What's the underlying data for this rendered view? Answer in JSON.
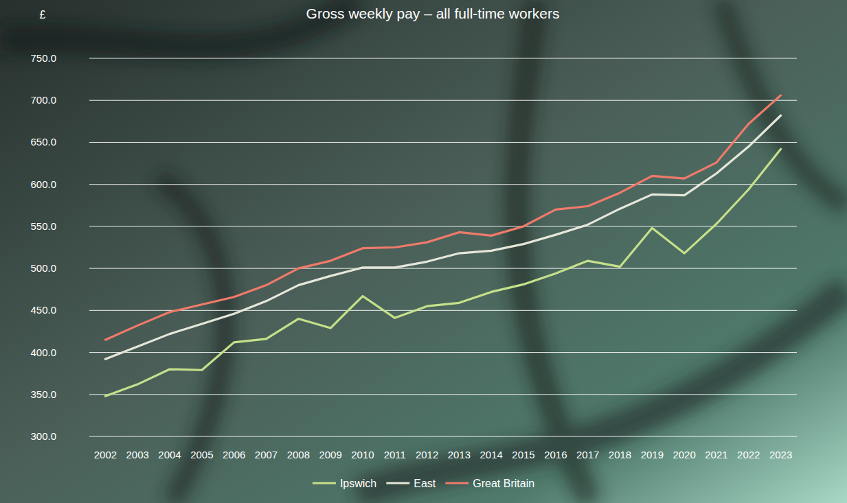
{
  "chart_data": {
    "type": "line",
    "title": "Gross weekly pay – all full-time workers",
    "y_label": "£",
    "categories": [
      "2002",
      "2003",
      "2004",
      "2005",
      "2006",
      "2007",
      "2008",
      "2009",
      "2010",
      "2011",
      "2012",
      "2013",
      "2014",
      "2015",
      "2016",
      "2017",
      "2018",
      "2019",
      "2020",
      "2021",
      "2022",
      "2023"
    ],
    "series": [
      {
        "name": "Ipswich",
        "color": "#c5e08a",
        "values": [
          348,
          362,
          380,
          379,
          412,
          416,
          440,
          429,
          467,
          441,
          455,
          459,
          472,
          481,
          494,
          509,
          502,
          548,
          518,
          553,
          594,
          642
        ]
      },
      {
        "name": "East",
        "color": "#e6e6da",
        "values": [
          392,
          407,
          422,
          434,
          446,
          461,
          480,
          491,
          501,
          501,
          508,
          518,
          521,
          529,
          540,
          552,
          571,
          588,
          587,
          613,
          645,
          682
        ]
      },
      {
        "name": "Great Britain",
        "color": "#f07a6a",
        "values": [
          415,
          432,
          448,
          457,
          466,
          480,
          500,
          509,
          524,
          525,
          531,
          543,
          539,
          550,
          570,
          574,
          590,
          610,
          607,
          626,
          672,
          706
        ]
      }
    ],
    "ylim": [
      300,
      750
    ],
    "yticks": [
      {
        "value": 300,
        "label": "300.0"
      },
      {
        "value": 350,
        "label": "350.0"
      },
      {
        "value": 400,
        "label": "400.0"
      },
      {
        "value": 450,
        "label": "450.0"
      },
      {
        "value": 500,
        "label": "500.0"
      },
      {
        "value": 550,
        "label": "550.0"
      },
      {
        "value": 600,
        "label": "600.0"
      },
      {
        "value": 650,
        "label": "650.0"
      },
      {
        "value": 700,
        "label": "700.0"
      },
      {
        "value": 750,
        "label": "750.0"
      }
    ],
    "grid": true,
    "legend": "bottom"
  }
}
